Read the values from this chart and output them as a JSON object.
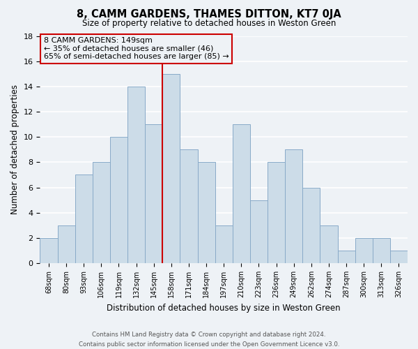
{
  "title": "8, CAMM GARDENS, THAMES DITTON, KT7 0JA",
  "subtitle": "Size of property relative to detached houses in Weston Green",
  "xlabel": "Distribution of detached houses by size in Weston Green",
  "ylabel": "Number of detached properties",
  "bin_labels": [
    "68sqm",
    "80sqm",
    "93sqm",
    "106sqm",
    "119sqm",
    "132sqm",
    "145sqm",
    "158sqm",
    "171sqm",
    "184sqm",
    "197sqm",
    "210sqm",
    "223sqm",
    "236sqm",
    "249sqm",
    "262sqm",
    "274sqm",
    "287sqm",
    "300sqm",
    "313sqm",
    "326sqm"
  ],
  "bar_values": [
    2,
    3,
    7,
    8,
    10,
    14,
    11,
    15,
    9,
    8,
    3,
    11,
    5,
    8,
    9,
    6,
    3,
    1,
    2,
    2,
    1
  ],
  "bar_color": "#ccdce8",
  "bar_edgecolor": "#88aac8",
  "vline_x": 6.5,
  "vline_color": "#cc0000",
  "annotation_title": "8 CAMM GARDENS: 149sqm",
  "annotation_line1": "← 35% of detached houses are smaller (46)",
  "annotation_line2": "65% of semi-detached houses are larger (85) →",
  "annotation_box_edgecolor": "#cc0000",
  "ylim": [
    0,
    18
  ],
  "yticks": [
    0,
    2,
    4,
    6,
    8,
    10,
    12,
    14,
    16,
    18
  ],
  "footer_line1": "Contains HM Land Registry data © Crown copyright and database right 2024.",
  "footer_line2": "Contains public sector information licensed under the Open Government Licence v3.0.",
  "background_color": "#eef2f6",
  "grid_color": "#ffffff"
}
